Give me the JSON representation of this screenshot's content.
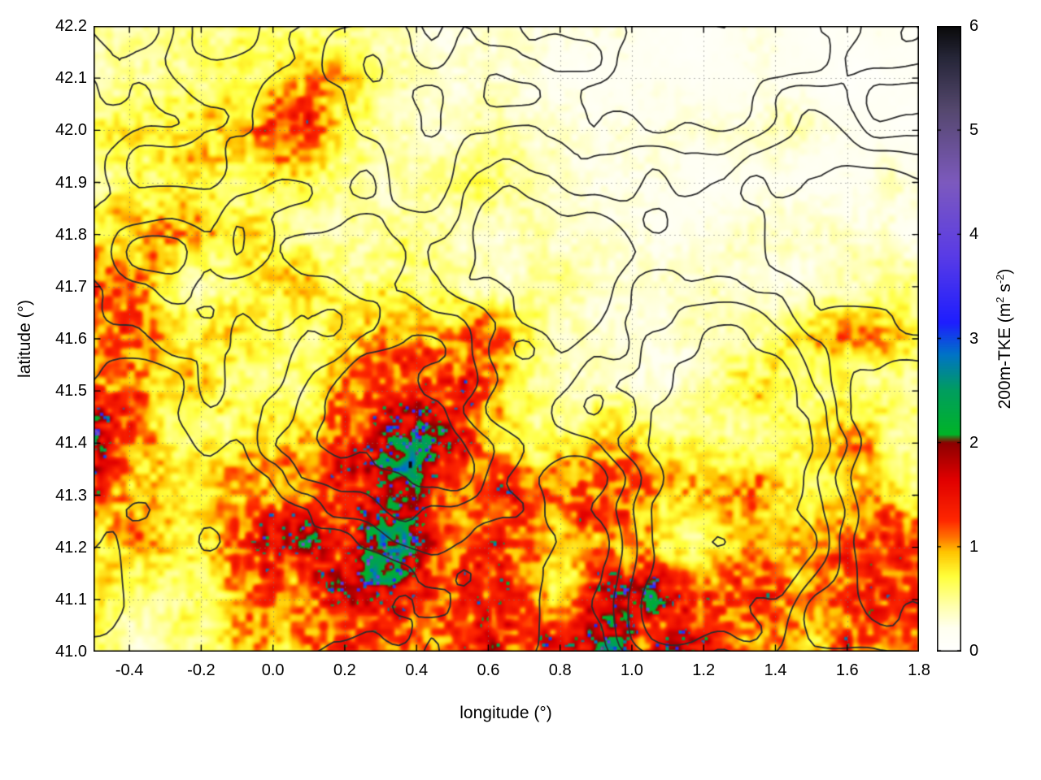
{
  "chart_data": {
    "type": "heatmap",
    "xlabel": "longitude (°)",
    "ylabel": "latitude (°)",
    "x_range": [
      -0.5,
      1.8
    ],
    "y_range": [
      41.0,
      42.2
    ],
    "x_tick_values": [
      -0.4,
      -0.2,
      0.0,
      0.2,
      0.4,
      0.6,
      0.8,
      1.0,
      1.2,
      1.4,
      1.6,
      1.8
    ],
    "x_tick_labels": [
      "-0.4",
      "-0.2",
      "0.0",
      "0.2",
      "0.4",
      "0.6",
      "0.8",
      "1.0",
      "1.2",
      "1.4",
      "1.6",
      "1.8"
    ],
    "y_tick_values": [
      41.0,
      41.1,
      41.2,
      41.3,
      41.4,
      41.5,
      41.6,
      41.7,
      41.8,
      41.9,
      42.0,
      42.1,
      42.2
    ],
    "y_tick_labels": [
      "41.0",
      "41.1",
      "41.2",
      "41.3",
      "41.4",
      "41.5",
      "41.6",
      "41.7",
      "41.8",
      "41.9",
      "42.0",
      "42.1",
      "42.2"
    ],
    "grid": true,
    "grid_color": "rgba(120,120,120,0.55)",
    "colorbar": {
      "label_parts": {
        "pre": "200m-TKE (m",
        "sup1": "2",
        "mid": " s",
        "sup2": "-2",
        "post": ")"
      },
      "range": [
        0,
        6
      ],
      "tick_values": [
        0,
        1,
        2,
        3,
        4,
        5,
        6
      ],
      "tick_labels": [
        "0",
        "1",
        "2",
        "3",
        "4",
        "5",
        "6"
      ],
      "palette": [
        [
          0.0,
          "#ffffff"
        ],
        [
          0.22,
          "#fffff0"
        ],
        [
          0.42,
          "#ffffb0"
        ],
        [
          0.72,
          "#ffff3a"
        ],
        [
          0.95,
          "#ffc400"
        ],
        [
          1.08,
          "#ff7800"
        ],
        [
          1.25,
          "#ff2800"
        ],
        [
          1.65,
          "#e00000"
        ],
        [
          2.0,
          "#8c0000"
        ],
        [
          2.08,
          "#00b428"
        ],
        [
          2.5,
          "#009e5f"
        ],
        [
          2.85,
          "#0073c8"
        ],
        [
          3.15,
          "#1e1eff"
        ],
        [
          3.8,
          "#5a3ce6"
        ],
        [
          4.5,
          "#7d5abe"
        ],
        [
          5.2,
          "#55486e"
        ],
        [
          5.7,
          "#262638"
        ],
        [
          6.0,
          "#0a0a0a"
        ]
      ]
    },
    "field": {
      "units": "m2 s-2",
      "nx": 24,
      "ny": 13,
      "order": "rows from lat 42.2 (top) to 41.0 (bottom), cols from lon -0.5 to 1.8",
      "values": [
        [
          0.4,
          0.4,
          0.5,
          0.6,
          0.7,
          0.5,
          0.4,
          0.5,
          0.4,
          0.3,
          0.3,
          0.4,
          0.3,
          0.2,
          0.2,
          0.2,
          0.1,
          0.1,
          0.2,
          0.2,
          0.1,
          0.1,
          0.2,
          0.1
        ],
        [
          0.4,
          0.5,
          0.5,
          0.6,
          0.6,
          0.7,
          1.0,
          0.9,
          0.5,
          0.4,
          0.3,
          0.3,
          0.3,
          0.2,
          0.2,
          0.2,
          0.2,
          0.1,
          0.2,
          0.3,
          0.2,
          0.1,
          0.1,
          0.1
        ],
        [
          0.5,
          0.6,
          0.6,
          0.7,
          0.8,
          1.0,
          1.1,
          0.8,
          0.5,
          0.4,
          0.3,
          0.4,
          0.3,
          0.3,
          0.2,
          0.3,
          0.3,
          0.2,
          0.3,
          0.4,
          0.3,
          0.2,
          0.2,
          0.1
        ],
        [
          0.6,
          0.8,
          0.7,
          0.6,
          0.6,
          0.7,
          0.6,
          0.5,
          0.4,
          0.4,
          0.4,
          0.5,
          0.4,
          0.3,
          0.2,
          0.2,
          0.2,
          0.2,
          0.2,
          0.2,
          0.2,
          0.2,
          0.3,
          0.2
        ],
        [
          0.6,
          0.7,
          0.9,
          0.7,
          0.6,
          0.6,
          0.6,
          0.5,
          0.5,
          0.6,
          0.5,
          0.4,
          0.4,
          0.3,
          0.3,
          0.3,
          0.2,
          0.2,
          0.3,
          0.3,
          0.3,
          0.4,
          0.4,
          0.3
        ],
        [
          1.2,
          0.8,
          0.6,
          0.6,
          0.5,
          0.6,
          0.7,
          0.7,
          0.8,
          0.8,
          0.6,
          0.5,
          0.4,
          0.4,
          0.3,
          0.3,
          0.3,
          0.3,
          0.3,
          0.3,
          0.4,
          0.4,
          0.5,
          0.4
        ],
        [
          1.5,
          1.2,
          0.7,
          0.6,
          0.6,
          0.6,
          0.7,
          0.8,
          0.9,
          1.0,
          1.6,
          1.2,
          0.7,
          0.5,
          0.4,
          0.3,
          0.3,
          0.4,
          0.5,
          0.6,
          0.8,
          0.9,
          0.8,
          0.5
        ],
        [
          1.6,
          1.3,
          0.8,
          0.7,
          0.6,
          0.7,
          0.7,
          0.8,
          1.0,
          1.3,
          1.5,
          1.0,
          0.7,
          0.5,
          0.4,
          0.4,
          0.4,
          0.5,
          0.6,
          0.7,
          0.8,
          0.7,
          0.6,
          0.5
        ],
        [
          1.4,
          1.1,
          0.9,
          0.8,
          0.7,
          0.8,
          0.9,
          1.1,
          1.5,
          2.2,
          1.8,
          1.0,
          0.8,
          0.7,
          1.1,
          1.3,
          0.8,
          0.6,
          0.5,
          0.6,
          0.7,
          0.8,
          0.7,
          0.6
        ],
        [
          1.3,
          1.0,
          0.8,
          0.7,
          0.8,
          1.0,
          1.2,
          1.3,
          1.4,
          1.6,
          1.2,
          0.9,
          1.2,
          1.5,
          1.2,
          0.9,
          0.7,
          0.8,
          0.9,
          0.7,
          0.6,
          0.7,
          0.8,
          0.7
        ],
        [
          0.9,
          0.8,
          0.7,
          0.8,
          1.0,
          1.3,
          1.5,
          1.7,
          2.0,
          1.9,
          1.3,
          1.2,
          1.4,
          1.0,
          0.8,
          0.7,
          0.6,
          0.7,
          0.8,
          0.9,
          0.9,
          1.0,
          1.1,
          1.2
        ],
        [
          0.7,
          0.6,
          0.6,
          0.7,
          0.8,
          1.0,
          1.3,
          1.5,
          1.3,
          1.1,
          1.5,
          1.8,
          1.3,
          0.9,
          1.2,
          1.4,
          1.5,
          1.4,
          1.3,
          1.3,
          1.2,
          1.2,
          1.3,
          1.3
        ],
        [
          0.6,
          0.5,
          0.5,
          0.6,
          0.7,
          0.8,
          1.0,
          1.2,
          1.1,
          1.0,
          1.6,
          2.0,
          1.2,
          0.9,
          1.3,
          1.8,
          2.0,
          1.6,
          1.4,
          1.3,
          1.2,
          1.2,
          1.2,
          1.1
        ]
      ]
    },
    "contours": {
      "color": "#2d2d2d",
      "levels": [
        0.38,
        0.47,
        0.56,
        0.65
      ]
    }
  }
}
